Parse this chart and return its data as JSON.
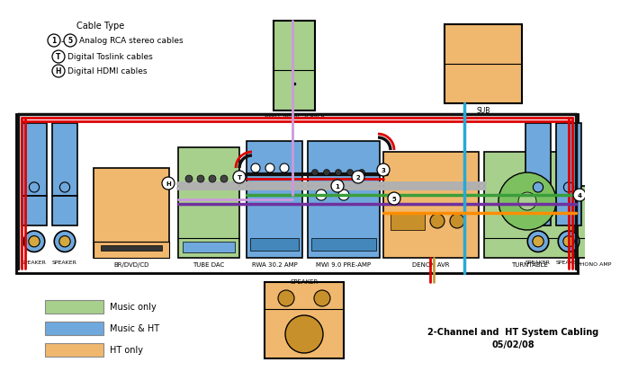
{
  "title": "2-Channel and  HT System Cabling\n05/02/08",
  "bg_color": "#ffffff",
  "cable_legend_title": "Cable Type",
  "color_legend": [
    {
      "color": "#a8d08d",
      "label": "Music only"
    },
    {
      "color": "#6fa8dc",
      "label": "Music & HT"
    },
    {
      "color": "#f0b86e",
      "label": "HT only"
    }
  ],
  "cable_colors": {
    "red": "#dd0000",
    "green": "#3a9e3a",
    "blue": "#29a8d4",
    "purple": "#7030a0",
    "orange": "#ff8c00",
    "black": "#111111",
    "gray": "#b0b0b0",
    "lavender": "#cc99dd",
    "tan": "#cc9933",
    "white": "#ffffff"
  }
}
